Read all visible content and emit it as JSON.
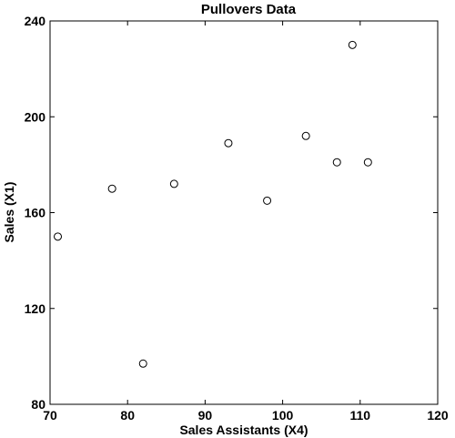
{
  "chart_data": {
    "type": "scatter",
    "title": "Pullovers Data",
    "xlabel": "Sales Assistants (X4)",
    "ylabel": "Sales (X1)",
    "xlim": [
      70,
      120
    ],
    "ylim": [
      80,
      240
    ],
    "xticks": [
      70,
      80,
      90,
      100,
      110,
      120
    ],
    "yticks": [
      80,
      120,
      160,
      200,
      240
    ],
    "grid": false,
    "points": [
      {
        "x": 71,
        "y": 150
      },
      {
        "x": 78,
        "y": 170
      },
      {
        "x": 82,
        "y": 97
      },
      {
        "x": 86,
        "y": 172
      },
      {
        "x": 93,
        "y": 189
      },
      {
        "x": 98,
        "y": 165
      },
      {
        "x": 103,
        "y": 192
      },
      {
        "x": 107,
        "y": 181
      },
      {
        "x": 109,
        "y": 230
      },
      {
        "x": 111,
        "y": 181
      }
    ]
  }
}
